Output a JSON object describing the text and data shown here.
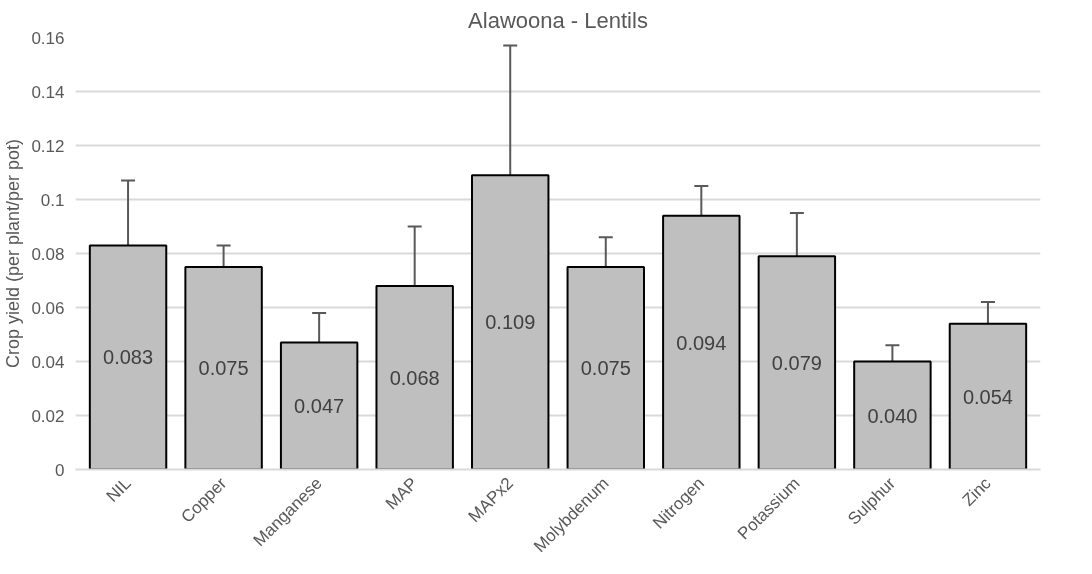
{
  "chart_data": {
    "type": "bar",
    "title": "Alawoona - Lentils",
    "ylabel": "Crop yield (per plant/per pot)",
    "categories": [
      "NIL",
      "Copper",
      "Manganese",
      "MAP",
      "MAPx2",
      "Molybdenum",
      "Nitrogen",
      "Potassium",
      "Sulphur",
      "Zinc"
    ],
    "values": [
      0.083,
      0.075,
      0.047,
      0.068,
      0.109,
      0.075,
      0.094,
      0.079,
      0.04,
      0.054
    ],
    "value_labels": [
      "0.083",
      "0.075",
      "0.047",
      "0.068",
      "0.109",
      "0.075",
      "0.094",
      "0.079",
      "0.040",
      "0.054"
    ],
    "errors": [
      [
        0.083,
        0.107
      ],
      [
        0.075,
        0.083
      ],
      [
        0.047,
        0.058
      ],
      [
        0.068,
        0.09
      ],
      [
        0.109,
        0.157
      ],
      [
        0.075,
        0.086
      ],
      [
        0.094,
        0.105
      ],
      [
        0.079,
        0.095
      ],
      [
        0.04,
        0.046
      ],
      [
        0.054,
        0.062
      ]
    ],
    "color": "#bfbfbf",
    "ylim": [
      0,
      0.16
    ],
    "yticks": [
      0,
      0.02,
      0.04,
      0.06,
      0.08,
      0.1,
      0.12,
      0.14,
      0.16
    ],
    "grid": "y"
  }
}
